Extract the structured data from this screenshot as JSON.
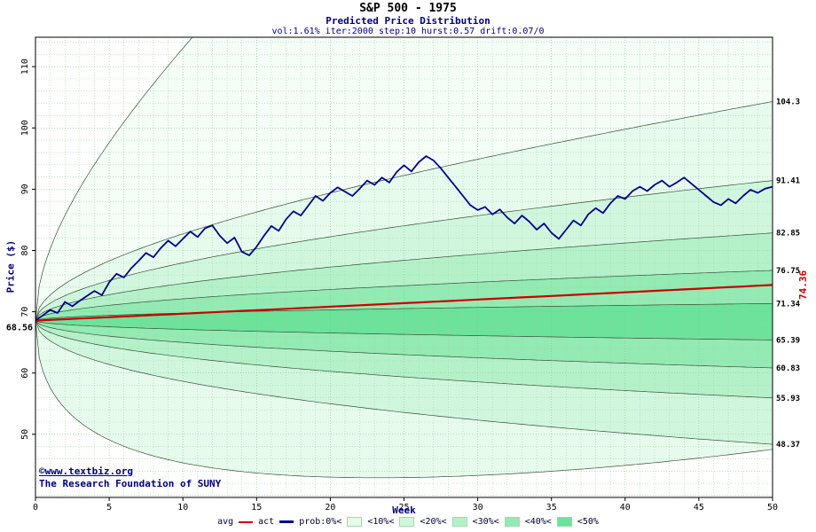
{
  "header": {
    "title": "S&P 500 - 1975",
    "subtitle": "Predicted Price Distribution",
    "params": "vol:1.61% iter:2000 step:10 hurst:0.57 drift:0.07/0"
  },
  "watermark": {
    "line1": "©www.textbiz.org",
    "line2": "The Research Foundation of SUNY"
  },
  "axes": {
    "x_label": "Week",
    "y_label": "Price ($)",
    "x_ticks": [
      0,
      5,
      10,
      15,
      20,
      25,
      30,
      35,
      40,
      45,
      50
    ],
    "y_ticks": [
      50,
      60,
      70,
      80,
      90,
      100,
      110
    ],
    "x_range": [
      0,
      50
    ],
    "y_range": [
      39.7,
      114.8
    ],
    "start_price_label": "68.56",
    "end_avg_label": "74.36"
  },
  "legend": {
    "avg_label": "avg",
    "act_label": "act",
    "prob_labels": [
      "prob:0%<",
      "<10%<",
      "<20%<",
      "<30%<",
      "<40%<",
      "<50%"
    ]
  },
  "chart_data": {
    "type": "fan-line",
    "title": "S&P 500 - 1975",
    "subtitle": "Predicted Price Distribution",
    "xlabel": "Week",
    "ylabel": "Price ($)",
    "xlim": [
      0,
      50
    ],
    "ylim": [
      39.7,
      114.8
    ],
    "start_price": 68.56,
    "avg_line": {
      "start": 68.56,
      "end": 74.36,
      "drift_per_week": 0.0016274,
      "color": "#cc0000",
      "label": "74.36"
    },
    "colors": [
      "#f4fef6",
      "#e6fbec",
      "#d0f7dd",
      "#b4f1c9",
      "#93eab2",
      "#6ce29b"
    ],
    "grid_color": "#a8cfa8",
    "grid_major_color": "#8abf8a",
    "curve_stroke": "#384e38",
    "quantile_curves": [
      {
        "a": 0,
        "b": 0.158,
        "label": null,
        "end_week50": null
      },
      {
        "a": 0,
        "b": 0.05934,
        "label": "104.3",
        "end_week50": 104.3
      },
      {
        "a": 0,
        "b": 0.04069,
        "label": "91.41",
        "end_week50": 91.41
      },
      {
        "a": 0,
        "b": 0.02679,
        "label": "82.85",
        "end_week50": 82.85
      },
      {
        "a": 0,
        "b": 0.01597,
        "label": "76.75",
        "end_week50": 76.75
      },
      {
        "a": 0,
        "b": 0.005629,
        "label": "71.34",
        "end_week50": 71.34
      },
      {
        "a": 0,
        "b": -0.006689,
        "label": "65.39",
        "end_week50": 65.39
      },
      {
        "a": 0,
        "b": -0.016913,
        "label": "60.83",
        "end_week50": 60.83
      },
      {
        "a": 0,
        "b": -0.028793,
        "label": "55.93",
        "end_week50": 55.93
      },
      {
        "a": 0,
        "b": -0.049341,
        "label": "48.37",
        "end_week50": 48.37
      },
      {
        "a": 0.0202,
        "b": -0.1946,
        "label": null,
        "end_week50": null
      }
    ],
    "band_shades": [
      0,
      1,
      2,
      3,
      4,
      5,
      4,
      3,
      2,
      1
    ],
    "act": {
      "color": "#00008b",
      "step_weeks": 0.5,
      "values": [
        68.6,
        69.4,
        70.3,
        69.8,
        71.6,
        70.9,
        71.8,
        72.6,
        73.4,
        72.7,
        74.8,
        76.2,
        75.6,
        77.1,
        78.3,
        79.6,
        78.9,
        80.4,
        81.6,
        80.7,
        81.9,
        83.1,
        82.2,
        83.6,
        84.1,
        82.4,
        81.2,
        82.1,
        79.8,
        79.2,
        80.6,
        82.4,
        84.0,
        83.2,
        85.1,
        86.4,
        85.7,
        87.3,
        88.9,
        88.1,
        89.4,
        90.3,
        89.6,
        88.9,
        90.1,
        91.4,
        90.7,
        91.9,
        91.1,
        92.8,
        93.9,
        92.9,
        94.4,
        95.4,
        94.7,
        93.4,
        91.9,
        90.4,
        88.9,
        87.4,
        86.6,
        87.1,
        85.9,
        86.7,
        85.4,
        84.4,
        85.7,
        84.7,
        83.4,
        84.4,
        82.9,
        81.9,
        83.4,
        84.9,
        84.1,
        85.9,
        86.9,
        86.1,
        87.7,
        88.9,
        88.4,
        89.7,
        90.4,
        89.7,
        90.7,
        91.4,
        90.4,
        91.1,
        91.9,
        90.9,
        89.9,
        88.9,
        87.9,
        87.4,
        88.4,
        87.7,
        88.9,
        89.9,
        89.4,
        90.1,
        90.4
      ]
    }
  }
}
